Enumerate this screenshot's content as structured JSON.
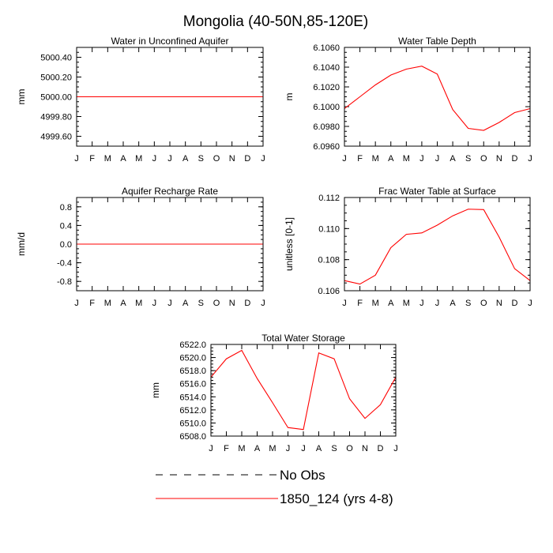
{
  "figure": {
    "title": "Mongolia (40-50N,85-120E)"
  },
  "legend": {
    "items": [
      {
        "label": "No Obs",
        "style": "dashed",
        "color": "#000000"
      },
      {
        "label": "1850_124 (yrs 4-8)",
        "style": "solid",
        "color": "#ff0000"
      }
    ]
  },
  "chart_data": [
    {
      "type": "line",
      "title": "Water in Unconfined Aquifer",
      "ylabel": "mm",
      "xlabel": "",
      "categories": [
        "J",
        "F",
        "M",
        "A",
        "M",
        "J",
        "J",
        "A",
        "S",
        "O",
        "N",
        "D",
        "J"
      ],
      "ylim": [
        4999.5,
        5000.5
      ],
      "yticks": [
        4999.6,
        4999.8,
        5000.0,
        5000.2,
        5000.4
      ],
      "yticklabels": [
        "4999.60",
        "4999.80",
        "5000.00",
        "5000.20",
        "5000.40"
      ],
      "series": [
        {
          "name": "1850_124 (yrs 4-8)",
          "color": "#ff0000",
          "values": [
            5000,
            5000,
            5000,
            5000,
            5000,
            5000,
            5000,
            5000,
            5000,
            5000,
            5000,
            5000,
            5000
          ]
        }
      ]
    },
    {
      "type": "line",
      "title": "Water Table Depth",
      "ylabel": "m",
      "xlabel": "",
      "categories": [
        "J",
        "F",
        "M",
        "A",
        "M",
        "J",
        "J",
        "A",
        "S",
        "O",
        "N",
        "D",
        "J"
      ],
      "ylim": [
        6.096,
        6.106
      ],
      "yticks": [
        6.096,
        6.098,
        6.1,
        6.102,
        6.104,
        6.106
      ],
      "yticklabels": [
        "6.0960",
        "6.0980",
        "6.1000",
        "6.1020",
        "6.1040",
        "6.1060"
      ],
      "series": [
        {
          "name": "1850_124 (yrs 4-8)",
          "color": "#ff0000",
          "values": [
            6.0998,
            6.101,
            6.1022,
            6.1032,
            6.1038,
            6.1041,
            6.1033,
            6.0997,
            6.0978,
            6.0976,
            6.0984,
            6.0994,
            6.0998
          ]
        }
      ]
    },
    {
      "type": "line",
      "title": "Aquifer Recharge Rate",
      "ylabel": "mm/d",
      "xlabel": "",
      "categories": [
        "J",
        "F",
        "M",
        "A",
        "M",
        "J",
        "J",
        "A",
        "S",
        "O",
        "N",
        "D",
        "J"
      ],
      "ylim": [
        -1.0,
        1.0
      ],
      "yticks": [
        -0.8,
        -0.4,
        0.0,
        0.4,
        0.8
      ],
      "yticklabels": [
        "-0.8",
        "-0.4",
        "0.0",
        "0.4",
        "0.8"
      ],
      "series": [
        {
          "name": "1850_124 (yrs 4-8)",
          "color": "#ff0000",
          "values": [
            0,
            0,
            0,
            0,
            0,
            0,
            0,
            0,
            0,
            0,
            0,
            0,
            0
          ]
        }
      ]
    },
    {
      "type": "line",
      "title": "Frac Water Table at Surface",
      "ylabel": "unitless [0-1]",
      "xlabel": "",
      "categories": [
        "J",
        "F",
        "M",
        "A",
        "M",
        "J",
        "J",
        "A",
        "S",
        "O",
        "N",
        "D",
        "J"
      ],
      "ylim": [
        0.106,
        0.112
      ],
      "yticks": [
        0.106,
        0.108,
        0.11,
        0.112
      ],
      "yticklabels": [
        "0.106",
        "0.108",
        "0.110",
        "0.112"
      ],
      "series": [
        {
          "name": "1850_124 (yrs 4-8)",
          "color": "#ff0000",
          "values": [
            0.10665,
            0.10643,
            0.107,
            0.10877,
            0.10963,
            0.10972,
            0.11022,
            0.11082,
            0.11125,
            0.11122,
            0.10945,
            0.10742,
            0.10665
          ]
        }
      ]
    },
    {
      "type": "line",
      "title": "Total Water Storage",
      "ylabel": "mm",
      "xlabel": "",
      "categories": [
        "J",
        "F",
        "M",
        "A",
        "M",
        "J",
        "J",
        "A",
        "S",
        "O",
        "N",
        "D",
        "J"
      ],
      "ylim": [
        6508.0,
        6522.0
      ],
      "yticks": [
        6508,
        6510,
        6512,
        6514,
        6516,
        6518,
        6520,
        6522
      ],
      "yticklabels": [
        "6508.0",
        "6510.0",
        "6512.0",
        "6514.0",
        "6516.0",
        "6518.0",
        "6520.0",
        "6522.0"
      ],
      "series": [
        {
          "name": "1850_124 (yrs 4-8)",
          "color": "#ff0000",
          "values": [
            6517.0,
            6519.8,
            6521.1,
            6516.8,
            6513.1,
            6509.3,
            6509.0,
            6520.7,
            6519.8,
            6513.7,
            6510.7,
            6512.8,
            6517.0
          ]
        }
      ]
    }
  ]
}
